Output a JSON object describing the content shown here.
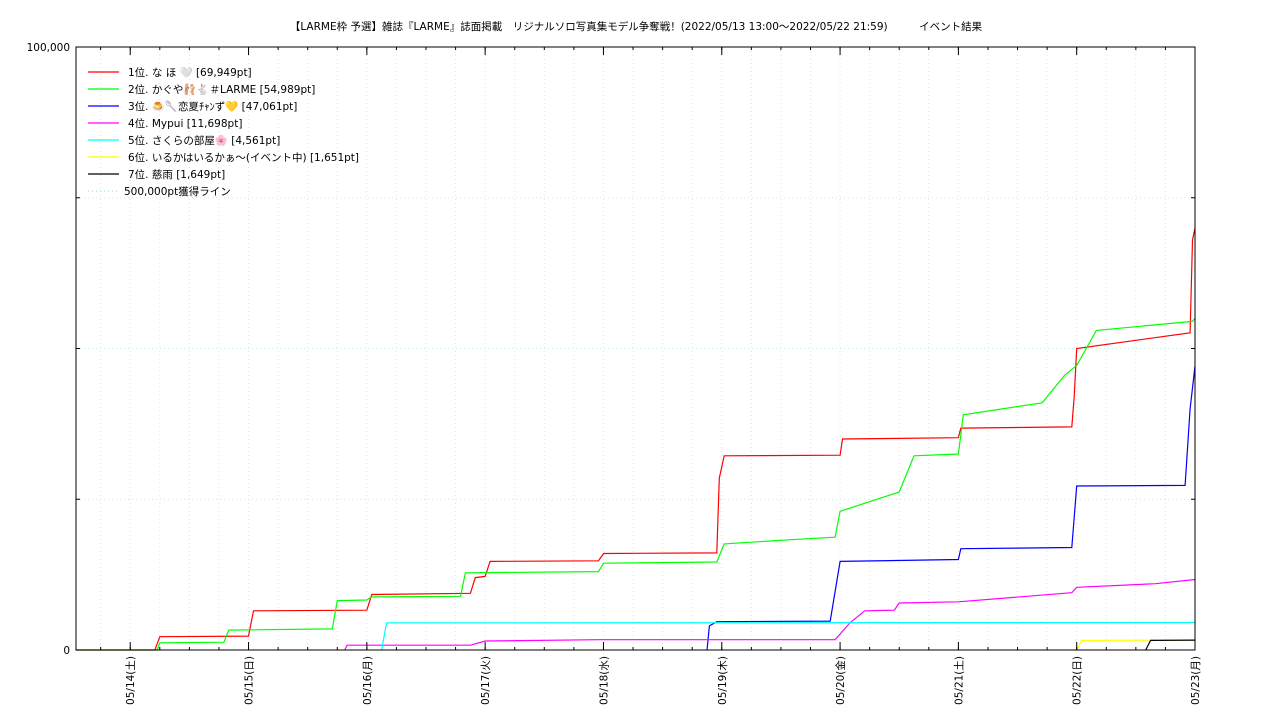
{
  "chart_data": {
    "type": "line",
    "title": "【LARME枠 予選】雑誌『LARME』誌面掲載　リジナルソロ写真集モデル争奪戦！(2022/05/13 13:00～2022/05/22 21:59)　　　イベント結果",
    "xlabel": "",
    "ylabel": "",
    "ylim": [
      0,
      100000
    ],
    "y_tick_labels": [
      "0",
      "100,000"
    ],
    "y_ticks_unlabeled": [
      25000,
      50000,
      75000
    ],
    "x_range": [
      "2022-05-13T13:00",
      "2022-05-23T00:00"
    ],
    "x_ticks": [
      "05/14(土)",
      "05/15(日)",
      "05/16(月)",
      "05/17(火)",
      "05/18(水)",
      "05/19(木)",
      "05/20(金)",
      "05/21(土)",
      "05/22(日)",
      "05/23(月)"
    ],
    "grid": true,
    "legend_position": "top-left",
    "reference_line": {
      "name": "500,000pt獲得ライン",
      "value": 500000,
      "color": "#90d8c0",
      "style": "dotted"
    },
    "series": [
      {
        "name": "1位. な ほ 🤍 [69,949pt]",
        "color": "#ff0000",
        "points": [
          [
            "2022-05-13T13:00",
            0
          ],
          [
            "2022-05-14T05:00",
            0
          ],
          [
            "2022-05-14T06:00",
            2200
          ],
          [
            "2022-05-15T00:00",
            2300
          ],
          [
            "2022-05-15T01:00",
            6500
          ],
          [
            "2022-05-16T00:00",
            6600
          ],
          [
            "2022-05-16T01:00",
            9200
          ],
          [
            "2022-05-16T21:00",
            9400
          ],
          [
            "2022-05-16T22:00",
            12000
          ],
          [
            "2022-05-17T00:00",
            12200
          ],
          [
            "2022-05-17T01:00",
            14700
          ],
          [
            "2022-05-17T23:00",
            14800
          ],
          [
            "2022-05-18T00:00",
            16000
          ],
          [
            "2022-05-18T23:00",
            16100
          ],
          [
            "2022-05-18T23:30",
            28500
          ],
          [
            "2022-05-19T00:30",
            32200
          ],
          [
            "2022-05-20T00:00",
            32300
          ],
          [
            "2022-05-20T00:30",
            35000
          ],
          [
            "2022-05-21T00:00",
            35200
          ],
          [
            "2022-05-21T00:30",
            36800
          ],
          [
            "2022-05-21T23:00",
            37000
          ],
          [
            "2022-05-21T23:30",
            42000
          ],
          [
            "2022-05-22T00:00",
            50000
          ],
          [
            "2022-05-22T23:00",
            52600
          ],
          [
            "2022-05-22T23:30",
            68000
          ],
          [
            "2022-05-23T00:00",
            69949
          ]
        ]
      },
      {
        "name": "2位. かぐや🩰🐇＃LARME [54,989pt]",
        "color": "#00ff00",
        "points": [
          [
            "2022-05-13T13:00",
            0
          ],
          [
            "2022-05-14T05:30",
            0
          ],
          [
            "2022-05-14T06:00",
            1200
          ],
          [
            "2022-05-14T19:00",
            1300
          ],
          [
            "2022-05-14T20:00",
            3300
          ],
          [
            "2022-05-15T17:00",
            3500
          ],
          [
            "2022-05-15T18:00",
            8200
          ],
          [
            "2022-05-16T00:00",
            8300
          ],
          [
            "2022-05-16T01:00",
            8800
          ],
          [
            "2022-05-16T19:00",
            8900
          ],
          [
            "2022-05-16T20:00",
            12800
          ],
          [
            "2022-05-17T23:00",
            13000
          ],
          [
            "2022-05-18T00:00",
            14400
          ],
          [
            "2022-05-18T23:00",
            14600
          ],
          [
            "2022-05-19T00:30",
            17600
          ],
          [
            "2022-05-19T14:00",
            18300
          ],
          [
            "2022-05-19T23:00",
            18700
          ],
          [
            "2022-05-20T00:00",
            23000
          ],
          [
            "2022-05-20T12:00",
            26200
          ],
          [
            "2022-05-20T15:00",
            32200
          ],
          [
            "2022-05-21T00:00",
            32500
          ],
          [
            "2022-05-21T01:00",
            39000
          ],
          [
            "2022-05-21T17:00",
            41000
          ],
          [
            "2022-05-21T21:30",
            45500
          ],
          [
            "2022-05-22T00:00",
            47200
          ],
          [
            "2022-05-22T04:00",
            53000
          ],
          [
            "2022-05-22T23:30",
            54500
          ],
          [
            "2022-05-23T00:00",
            54989
          ]
        ]
      },
      {
        "name": "3位. 🍮🥄恋夏ﾁｬﾝず💛 [47,061pt]",
        "color": "#0000ff",
        "points": [
          [
            "2022-05-18T21:00",
            0
          ],
          [
            "2022-05-18T21:30",
            4000
          ],
          [
            "2022-05-18T23:00",
            4700
          ],
          [
            "2022-05-19T22:00",
            4800
          ],
          [
            "2022-05-20T00:00",
            14700
          ],
          [
            "2022-05-21T00:00",
            15000
          ],
          [
            "2022-05-21T00:30",
            16800
          ],
          [
            "2022-05-21T23:00",
            17000
          ],
          [
            "2022-05-22T00:00",
            27200
          ],
          [
            "2022-05-22T22:00",
            27300
          ],
          [
            "2022-05-22T23:00",
            40000
          ],
          [
            "2022-05-23T00:00",
            47061
          ]
        ]
      },
      {
        "name": "4位. Mypui [11,698pt]",
        "color": "#ff00ff",
        "points": [
          [
            "2022-05-15T19:30",
            0
          ],
          [
            "2022-05-15T20:00",
            800
          ],
          [
            "2022-05-16T21:00",
            800
          ],
          [
            "2022-05-17T00:00",
            1500
          ],
          [
            "2022-05-17T23:00",
            1700
          ],
          [
            "2022-05-19T23:00",
            1700
          ],
          [
            "2022-05-20T02:00",
            4500
          ],
          [
            "2022-05-20T05:00",
            6500
          ],
          [
            "2022-05-20T11:00",
            6600
          ],
          [
            "2022-05-20T12:00",
            7800
          ],
          [
            "2022-05-21T00:00",
            8000
          ],
          [
            "2022-05-21T23:00",
            9500
          ],
          [
            "2022-05-22T00:00",
            10400
          ],
          [
            "2022-05-22T16:00",
            11000
          ],
          [
            "2022-05-23T00:00",
            11698
          ]
        ]
      },
      {
        "name": "5位. さくらの部屋🌸 [4,561pt]",
        "color": "#00ffff",
        "points": [
          [
            "2022-05-16T03:00",
            0
          ],
          [
            "2022-05-16T04:00",
            4500
          ],
          [
            "2022-05-23T00:00",
            4561
          ]
        ]
      },
      {
        "name": "6位. いるかはいるかぁ〜(イベント中) [1,651pt]",
        "color": "#ffff00",
        "points": [
          [
            "2022-05-22T00:00",
            0
          ],
          [
            "2022-05-22T01:00",
            1600
          ],
          [
            "2022-05-23T00:00",
            1651
          ]
        ]
      },
      {
        "name": "7位. 慈雨 [1,649pt]",
        "color": "#000000",
        "points": [
          [
            "2022-05-22T14:00",
            0
          ],
          [
            "2022-05-22T15:00",
            1600
          ],
          [
            "2022-05-23T00:00",
            1649
          ]
        ]
      }
    ]
  }
}
